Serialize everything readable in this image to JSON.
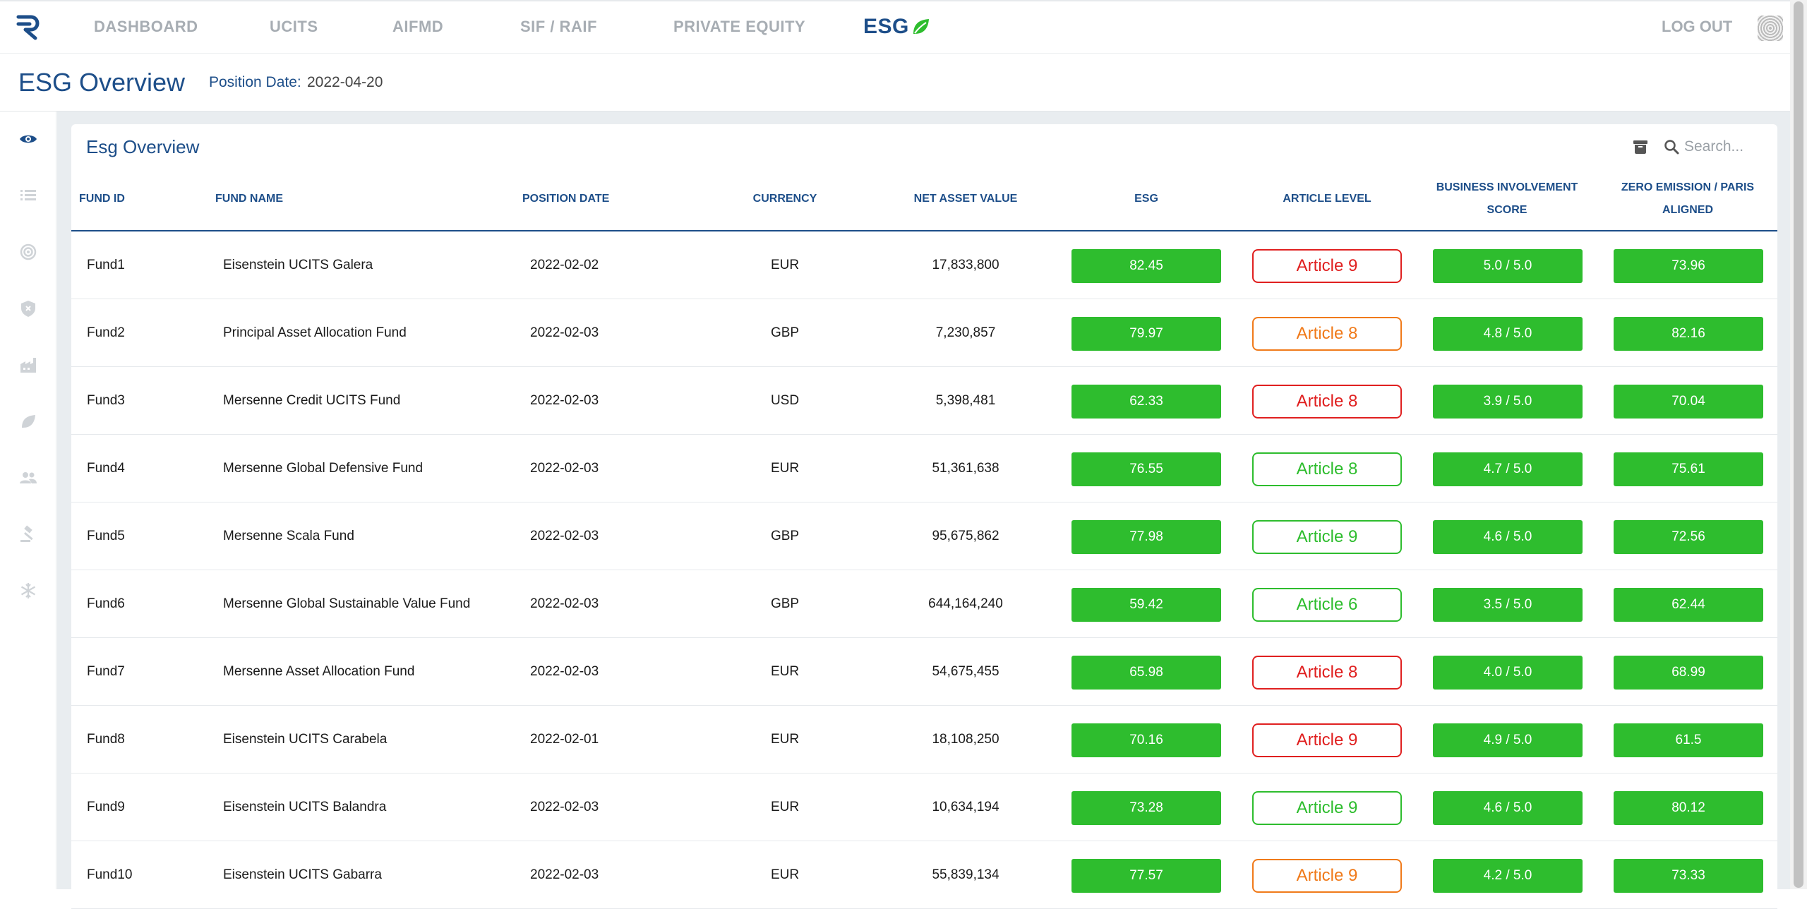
{
  "nav": {
    "items": [
      {
        "label": "DASHBOARD"
      },
      {
        "label": "UCITS"
      },
      {
        "label": "AIFMD"
      },
      {
        "label": "SIF / RAIF"
      },
      {
        "label": "PRIVATE EQUITY"
      }
    ],
    "active_label": "ESG",
    "logout_label": "LOG OUT"
  },
  "page": {
    "title": "ESG Overview",
    "position_date_label": "Position Date:",
    "position_date_value": "2022-04-20"
  },
  "sidebar": {
    "icons": [
      "eye-icon",
      "list-icon",
      "target-icon",
      "shield-icon",
      "factory-icon",
      "leaf-icon",
      "people-icon",
      "gavel-icon",
      "snowflake-icon"
    ]
  },
  "card": {
    "title": "Esg Overview",
    "search_placeholder": "Search..."
  },
  "table": {
    "headers": {
      "fund_id": "FUND ID",
      "fund_name": "FUND NAME",
      "position_date": "POSITION DATE",
      "currency": "CURRENCY",
      "nav": "NET ASSET VALUE",
      "esg": "ESG",
      "article": "ARTICLE LEVEL",
      "biz_line1": "BUSINESS INVOLVEMENT",
      "biz_line2": "SCORE",
      "zero_line1": "ZERO EMISSION / PARIS",
      "zero_line2": "ALIGNED"
    },
    "rows": [
      {
        "id": "Fund1",
        "name": "Eisenstein UCITS Galera",
        "date": "2022-02-02",
        "ccy": "EUR",
        "nav": "17,833,800",
        "esg": "82.45",
        "article": "Article 9",
        "article_color": "#e02020",
        "biz": "5.0 / 5.0",
        "zero": "73.96"
      },
      {
        "id": "Fund2",
        "name": "Principal Asset Allocation Fund",
        "date": "2022-02-03",
        "ccy": "GBP",
        "nav": "7,230,857",
        "esg": "79.97",
        "article": "Article 8",
        "article_color": "#f07a1a",
        "biz": "4.8 / 5.0",
        "zero": "82.16"
      },
      {
        "id": "Fund3",
        "name": "Mersenne Credit UCITS Fund",
        "date": "2022-02-03",
        "ccy": "USD",
        "nav": "5,398,481",
        "esg": "62.33",
        "article": "Article 8",
        "article_color": "#e02020",
        "biz": "3.9 / 5.0",
        "zero": "70.04"
      },
      {
        "id": "Fund4",
        "name": "Mersenne Global Defensive Fund",
        "date": "2022-02-03",
        "ccy": "EUR",
        "nav": "51,361,638",
        "esg": "76.55",
        "article": "Article 8",
        "article_color": "#2ebd2e",
        "biz": "4.7 / 5.0",
        "zero": "75.61"
      },
      {
        "id": "Fund5",
        "name": "Mersenne Scala Fund",
        "date": "2022-02-03",
        "ccy": "GBP",
        "nav": "95,675,862",
        "esg": "77.98",
        "article": "Article 9",
        "article_color": "#2ebd2e",
        "biz": "4.6 / 5.0",
        "zero": "72.56"
      },
      {
        "id": "Fund6",
        "name": "Mersenne Global Sustainable Value Fund",
        "date": "2022-02-03",
        "ccy": "GBP",
        "nav": "644,164,240",
        "esg": "59.42",
        "article": "Article 6",
        "article_color": "#2ebd2e",
        "biz": "3.5 / 5.0",
        "zero": "62.44"
      },
      {
        "id": "Fund7",
        "name": "Mersenne Asset Allocation Fund",
        "date": "2022-02-03",
        "ccy": "EUR",
        "nav": "54,675,455",
        "esg": "65.98",
        "article": "Article 8",
        "article_color": "#e02020",
        "biz": "4.0 / 5.0",
        "zero": "68.99"
      },
      {
        "id": "Fund8",
        "name": "Eisenstein UCITS Carabela",
        "date": "2022-02-01",
        "ccy": "EUR",
        "nav": "18,108,250",
        "esg": "70.16",
        "article": "Article 9",
        "article_color": "#e02020",
        "biz": "4.9 / 5.0",
        "zero": "61.5"
      },
      {
        "id": "Fund9",
        "name": "Eisenstein UCITS Balandra",
        "date": "2022-02-03",
        "ccy": "EUR",
        "nav": "10,634,194",
        "esg": "73.28",
        "article": "Article 9",
        "article_color": "#2ebd2e",
        "biz": "4.6 / 5.0",
        "zero": "80.12"
      },
      {
        "id": "Fund10",
        "name": "Eisenstein UCITS Gabarra",
        "date": "2022-02-03",
        "ccy": "EUR",
        "nav": "55,839,134",
        "esg": "77.57",
        "article": "Article 9",
        "article_color": "#f07a1a",
        "biz": "4.2 / 5.0",
        "zero": "73.33"
      }
    ]
  },
  "colors": {
    "brand": "#1d4e89",
    "green": "#2ebd2e",
    "red": "#e02020",
    "orange": "#f07a1a",
    "nav_inactive": "#a7adb3"
  }
}
